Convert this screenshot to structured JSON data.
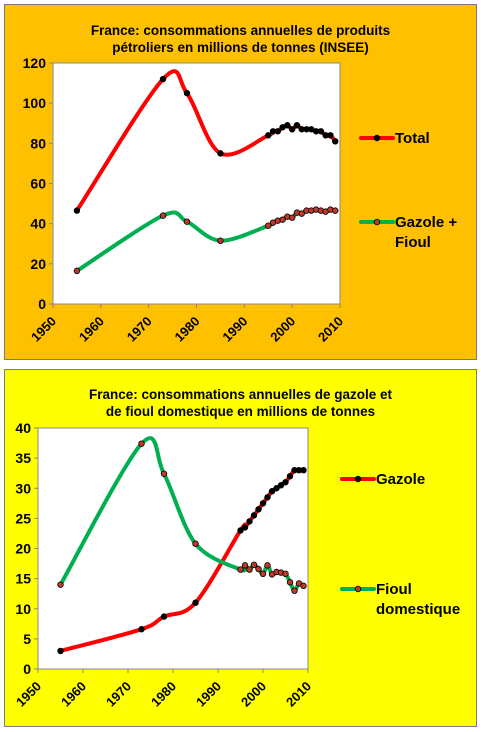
{
  "charts": [
    {
      "title": "France: consommations annuelles de produits\npétroliers en millions de tonnes (INSEE)",
      "background": "#ffc000",
      "chart_data": {
        "type": "line",
        "title": "France: consommations annuelles de produits pétroliers en millions de tonnes (INSEE)",
        "xlim": [
          1950,
          2010
        ],
        "ylim": [
          0,
          120
        ],
        "x_ticks": [
          "1950",
          "1960",
          "1970",
          "1980",
          "1990",
          "2000",
          "2010"
        ],
        "y_ticks": [
          "0",
          "20",
          "40",
          "60",
          "80",
          "100",
          "120"
        ],
        "grid": false,
        "legend_position": "right",
        "series": [
          {
            "name": "Total",
            "color": "#ff0000",
            "x": [
              1955,
              1973,
              1978,
              1985,
              1995,
              1996,
              1997,
              1998,
              1999,
              2000,
              2001,
              2002,
              2003,
              2004,
              2005,
              2006,
              2007,
              2008,
              2009
            ],
            "y": [
              46.5,
              112,
              105,
              75,
              84,
              86,
              86,
              88,
              89,
              87,
              89,
              87,
              87,
              87,
              86,
              86,
              84,
              84,
              81
            ]
          },
          {
            "name": "Gazole + Fioul",
            "color": "#00b050",
            "x": [
              1955,
              1973,
              1978,
              1985,
              1995,
              1996,
              1997,
              1998,
              1999,
              2000,
              2001,
              2002,
              2003,
              2004,
              2005,
              2006,
              2007,
              2008,
              2009
            ],
            "y": [
              16.5,
              44,
              41,
              31.5,
              39,
              40.5,
              41.5,
              42,
              43.5,
              43,
              45.5,
              45,
              46.5,
              46.5,
              47,
              46.5,
              46,
              47,
              46.5
            ]
          }
        ]
      }
    },
    {
      "title": "France: consommations annuelles de gazole et\nde  fioul domestique en millions de tonnes",
      "background": "#ffff00",
      "chart_data": {
        "type": "line",
        "title": "France: consommations annuelles de gazole et de fioul domestique en millions de tonnes",
        "xlim": [
          1950,
          2010
        ],
        "ylim": [
          0,
          40
        ],
        "x_ticks": [
          "1950",
          "1960",
          "1970",
          "1980",
          "1990",
          "2000",
          "2010"
        ],
        "y_ticks": [
          "0",
          "5",
          "10",
          "15",
          "20",
          "25",
          "30",
          "35",
          "40"
        ],
        "grid": false,
        "legend_position": "right",
        "series": [
          {
            "name": "Gazole",
            "color": "#ff0000",
            "x": [
              1955,
              1973,
              1978,
              1985,
              1995,
              1996,
              1997,
              1998,
              1999,
              2000,
              2001,
              2002,
              2003,
              2004,
              2005,
              2006,
              2007,
              2008,
              2009
            ],
            "y": [
              3,
              6.6,
              8.7,
              11,
              23,
              23.5,
              24.5,
              25.5,
              26.5,
              27.5,
              28.5,
              29.5,
              30,
              30.5,
              31,
              32,
              33,
              33,
              33
            ]
          },
          {
            "name": "Fioul domestique",
            "color": "#00b050",
            "x": [
              1955,
              1973,
              1978,
              1985,
              1995,
              1996,
              1997,
              1998,
              1999,
              2000,
              2001,
              2002,
              2003,
              2004,
              2005,
              2006,
              2007,
              2008,
              2009
            ],
            "y": [
              14,
              37.4,
              32.4,
              20.8,
              16.5,
              17.2,
              16.5,
              17.3,
              16.6,
              15.8,
              17.2,
              15.7,
              16.1,
              16,
              15.8,
              14.4,
              13,
              14.2,
              13.8
            ]
          }
        ]
      }
    }
  ]
}
